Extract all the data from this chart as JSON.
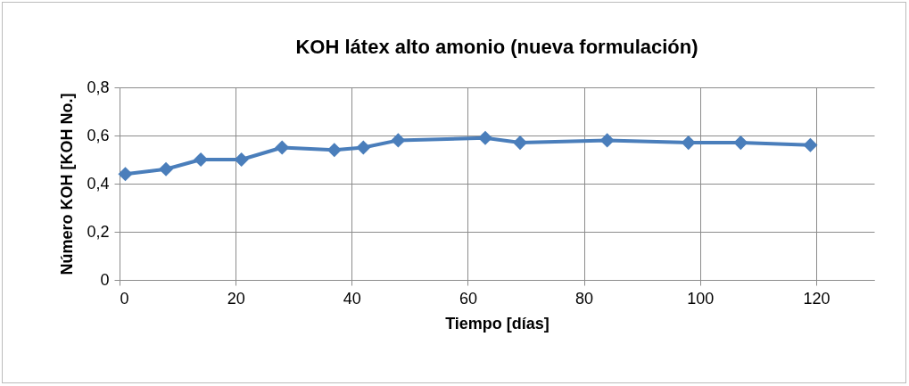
{
  "chart_data": {
    "type": "line",
    "title": "KOH látex alto amonio (nueva formulación)",
    "xlabel": "Tiempo [días]",
    "ylabel": "Número KOH [KOH No.]",
    "x": [
      1,
      8,
      14,
      21,
      28,
      37,
      42,
      48,
      63,
      69,
      84,
      98,
      107,
      119
    ],
    "series": [
      {
        "color": "#4a7ebb",
        "values": [
          0.44,
          0.46,
          0.5,
          0.5,
          0.55,
          0.54,
          0.55,
          0.58,
          0.59,
          0.57,
          0.58,
          0.57,
          0.57,
          0.56
        ]
      }
    ],
    "xlim": [
      0,
      130
    ],
    "xticks": [
      0,
      20,
      40,
      60,
      80,
      100,
      120
    ],
    "ylim": [
      0,
      0.8
    ],
    "yticks": [
      0,
      {
        "value": 0.2,
        "label": "0,2"
      },
      {
        "value": 0.4,
        "label": "0,4"
      },
      {
        "value": 0.6,
        "label": "0,6"
      },
      {
        "value": 0.8,
        "label": "0,8"
      }
    ],
    "grid": true,
    "marker": "diamond",
    "line_style": "solid"
  }
}
